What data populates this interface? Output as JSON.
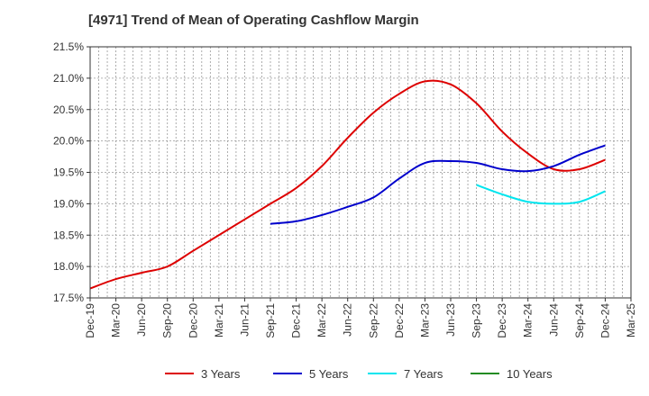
{
  "chart_data": {
    "type": "line",
    "title": "[4971]  Trend of Mean of Operating Cashflow Margin",
    "xlabel": "",
    "ylabel": "",
    "x": [
      "Dec-19",
      "Mar-20",
      "Jun-20",
      "Sep-20",
      "Dec-20",
      "Mar-21",
      "Jun-21",
      "Sep-21",
      "Dec-21",
      "Mar-22",
      "Jun-22",
      "Sep-22",
      "Dec-22",
      "Mar-23",
      "Jun-23",
      "Sep-23",
      "Dec-23",
      "Mar-24",
      "Jun-24",
      "Sep-24",
      "Dec-24",
      "Mar-25"
    ],
    "y_ticks": [
      "17.5%",
      "18.0%",
      "18.5%",
      "19.0%",
      "19.5%",
      "20.0%",
      "20.5%",
      "21.0%",
      "21.5%"
    ],
    "ylim": [
      17.5,
      21.5
    ],
    "grid": true,
    "legend_position": "bottom",
    "series": [
      {
        "name": "3 Years",
        "color": "#dd0000",
        "values": [
          17.65,
          17.8,
          17.9,
          18.0,
          18.25,
          18.5,
          18.75,
          19.0,
          19.25,
          19.6,
          20.05,
          20.45,
          20.75,
          20.95,
          20.9,
          20.6,
          20.15,
          19.8,
          19.55,
          19.55,
          19.7,
          null
        ]
      },
      {
        "name": "5 Years",
        "color": "#0000cc",
        "values": [
          null,
          null,
          null,
          null,
          null,
          null,
          null,
          18.68,
          18.72,
          18.82,
          18.95,
          19.1,
          19.4,
          19.65,
          19.68,
          19.65,
          19.55,
          19.52,
          19.6,
          19.78,
          19.93,
          null
        ]
      },
      {
        "name": "7 Years",
        "color": "#00e5ee",
        "values": [
          null,
          null,
          null,
          null,
          null,
          null,
          null,
          null,
          null,
          null,
          null,
          null,
          null,
          null,
          null,
          19.3,
          19.15,
          19.03,
          19.0,
          19.03,
          19.2,
          null
        ]
      },
      {
        "name": "10 Years",
        "color": "#228b22",
        "values": [
          null,
          null,
          null,
          null,
          null,
          null,
          null,
          null,
          null,
          null,
          null,
          null,
          null,
          null,
          null,
          null,
          null,
          null,
          null,
          null,
          null,
          null
        ]
      }
    ]
  }
}
